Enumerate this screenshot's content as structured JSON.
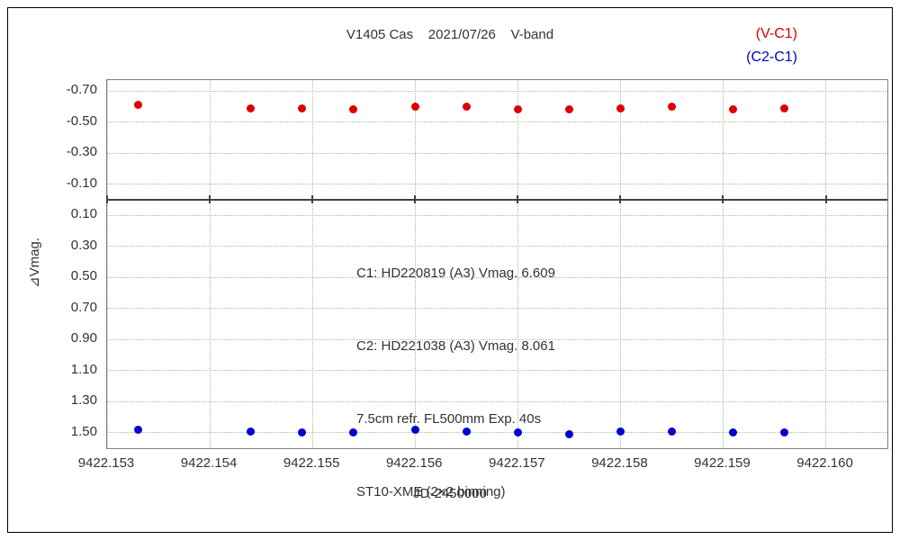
{
  "figure": {
    "title": "V1405 Cas    2021/07/26    V-band"
  },
  "legend": {
    "position": "top-right",
    "entries": [
      {
        "label": "(V-C1)",
        "color": "#dd0000"
      },
      {
        "label": "(C2-C1)",
        "color": "#0000cd"
      }
    ]
  },
  "annotation": {
    "lines": [
      "C1: HD220819 (A3) Vmag. 6.609",
      "C2: HD221038 (A3) Vmag. 8.061",
      "7.5cm refr. FL500mm Exp. 40s",
      "ST10-XME (2×2 binning)"
    ]
  },
  "colors": {
    "grid": "#9dbf9d",
    "axis_border": "#808080",
    "zero_line": "#404040",
    "text": "#333333",
    "background": "#ffffff"
  },
  "chart_data": {
    "type": "scatter",
    "title": "V1405 Cas 2021/07/26 V-band",
    "xlabel": "JD-2450000",
    "ylabel": "⊿Vmag.",
    "x": [
      9422.1533,
      9422.1544,
      9422.1549,
      9422.1554,
      9422.156,
      9422.1565,
      9422.157,
      9422.1575,
      9422.158,
      9422.1585,
      9422.1591,
      9422.1596
    ],
    "series": [
      {
        "name": "V-C1",
        "legend_label": "(V-C1)",
        "color": "#dd0000",
        "values": [
          -0.61,
          -0.59,
          -0.59,
          -0.58,
          -0.6,
          -0.6,
          -0.58,
          -0.58,
          -0.59,
          -0.6,
          -0.58,
          -0.59
        ]
      },
      {
        "name": "C2-C1",
        "legend_label": "(C2-C1)",
        "color": "#0000cd",
        "values": [
          1.48,
          1.49,
          1.5,
          1.5,
          1.48,
          1.49,
          1.5,
          1.51,
          1.49,
          1.49,
          1.5,
          1.5
        ]
      }
    ],
    "x_ticks": [
      9422.153,
      9422.154,
      9422.155,
      9422.156,
      9422.157,
      9422.158,
      9422.159,
      9422.16
    ],
    "y_ticks": [
      -0.7,
      -0.5,
      -0.3,
      -0.1,
      0.1,
      0.3,
      0.5,
      0.7,
      0.9,
      1.1,
      1.3,
      1.5
    ],
    "xlim": [
      9422.153,
      9422.1606
    ],
    "ylim": [
      -0.77,
      1.6
    ],
    "y_axis_orientation": "inverted (negative magnitudes at top)",
    "zero_line": 0.0,
    "grid": "dotted",
    "legend_position": "top-right"
  }
}
